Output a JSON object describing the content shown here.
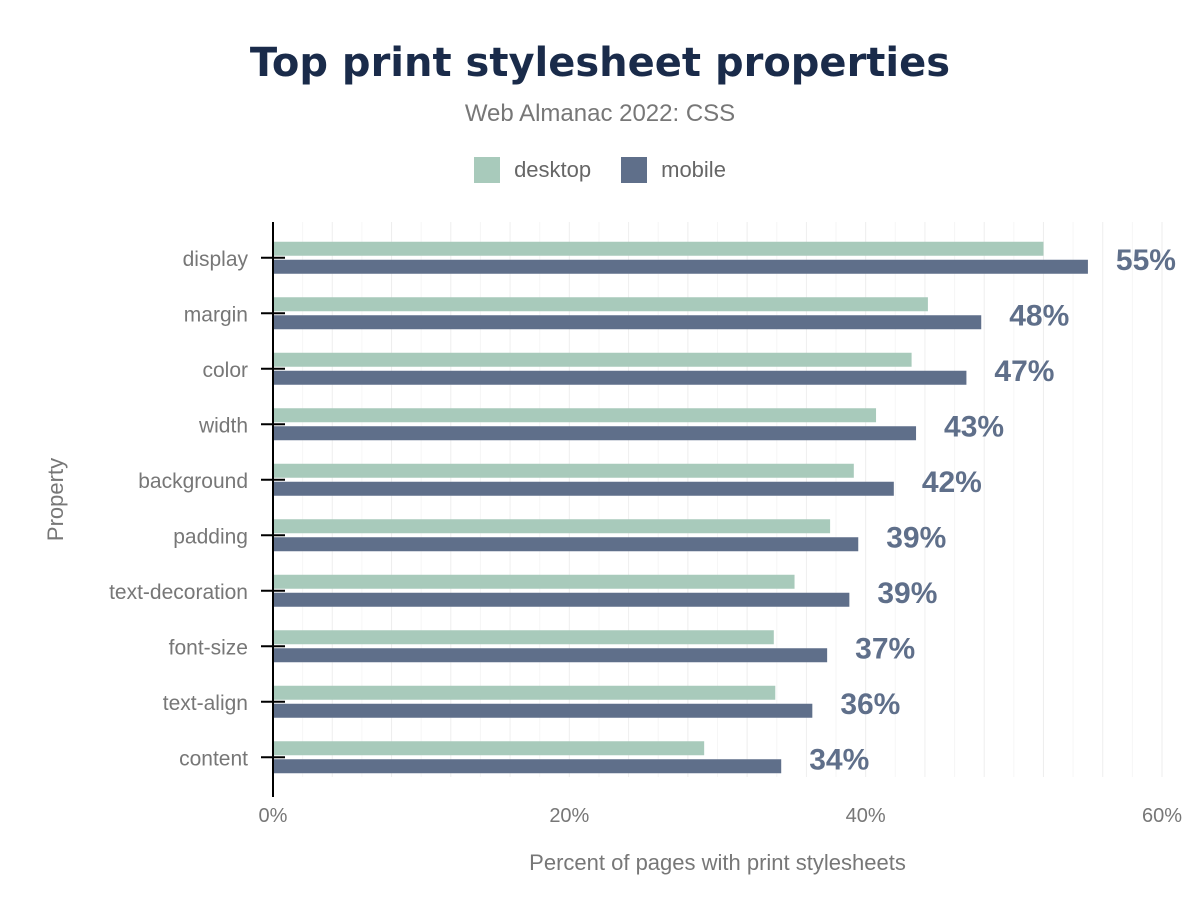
{
  "chart_data": {
    "type": "bar",
    "orientation": "horizontal",
    "title": "Top print stylesheet properties",
    "subtitle": "Web Almanac 2022: CSS",
    "xlabel": "Percent of pages with print stylesheets",
    "ylabel": "Property",
    "xlim": [
      0,
      60
    ],
    "xticks": [
      "0%",
      "20%",
      "40%",
      "60%"
    ],
    "grid": true,
    "legend_position": "top",
    "categories": [
      "display",
      "margin",
      "color",
      "width",
      "background",
      "padding",
      "text-decoration",
      "font-size",
      "text-align",
      "content"
    ],
    "series": [
      {
        "name": "desktop",
        "color": "#a8cabb",
        "values": [
          52.0,
          44.2,
          43.1,
          40.7,
          39.2,
          37.6,
          35.2,
          33.8,
          33.9,
          29.1
        ]
      },
      {
        "name": "mobile",
        "color": "#5f6f8a",
        "values": [
          55.0,
          47.8,
          46.8,
          43.4,
          41.9,
          39.5,
          38.9,
          37.4,
          36.4,
          34.3
        ]
      }
    ],
    "data_labels": [
      "55%",
      "48%",
      "47%",
      "43%",
      "42%",
      "39%",
      "39%",
      "37%",
      "36%",
      "34%"
    ]
  }
}
